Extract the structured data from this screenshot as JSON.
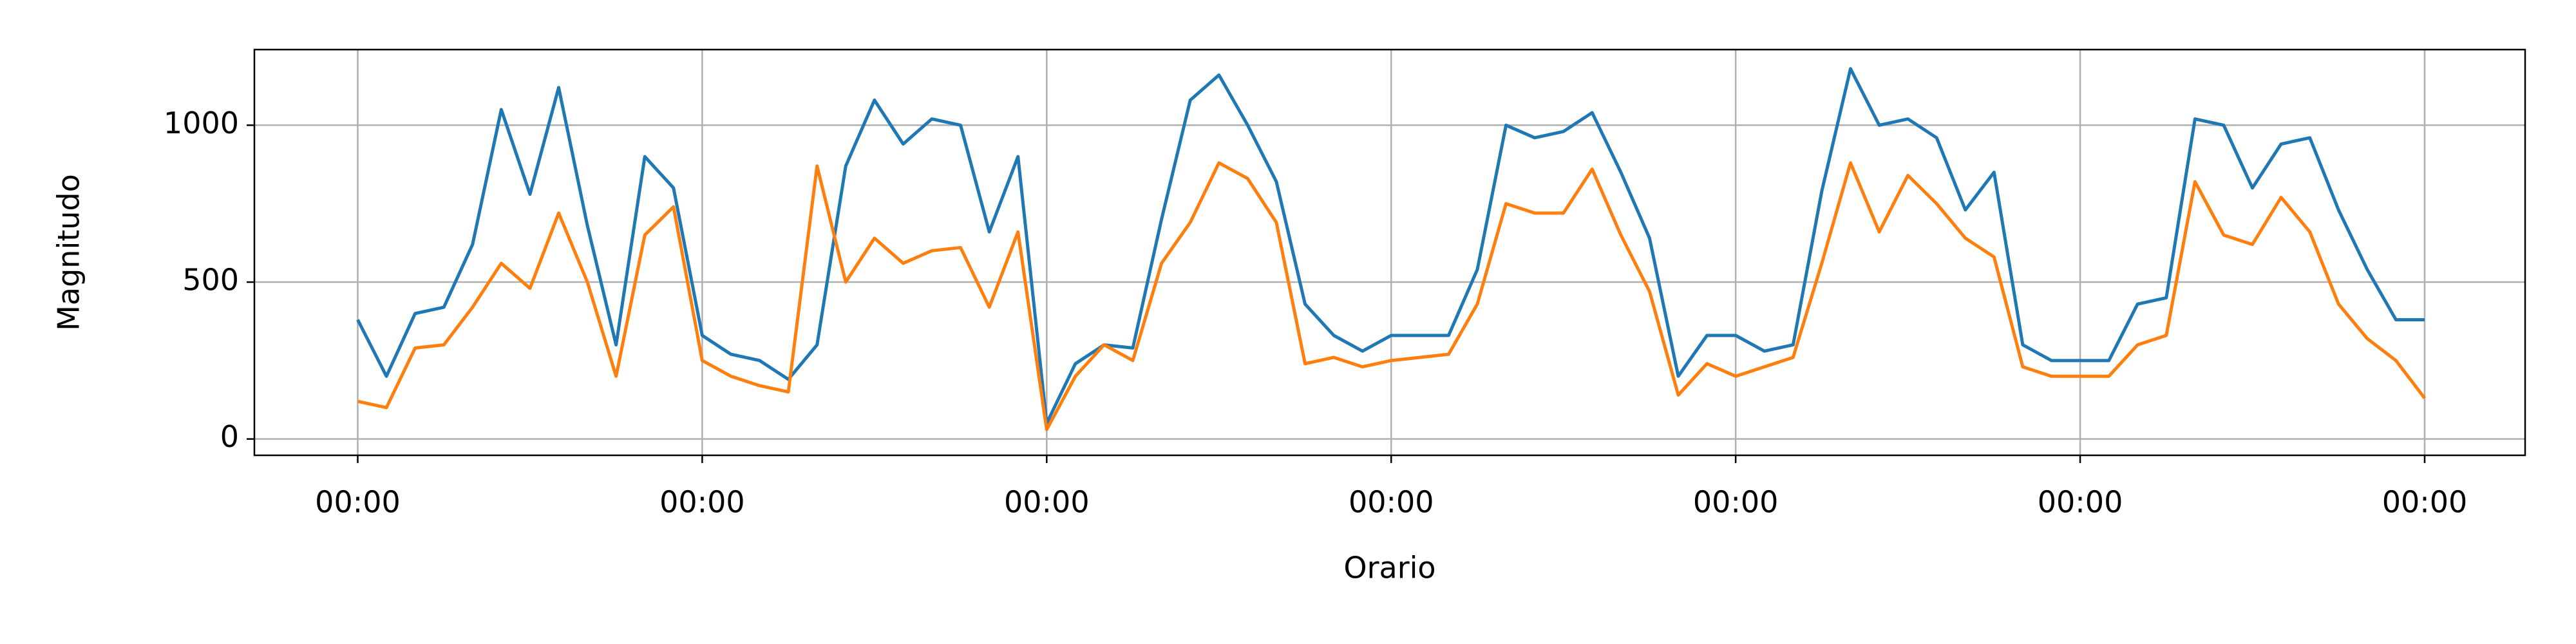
{
  "chart_data": {
    "type": "line",
    "xlabel": "Orario",
    "ylabel": "Magnitudo",
    "x": [
      0,
      2,
      4,
      6,
      8,
      10,
      12,
      14,
      16,
      18,
      20,
      22,
      24,
      26,
      28,
      30,
      32,
      34,
      36,
      38,
      40,
      42,
      44,
      46,
      48,
      50,
      52,
      54,
      56,
      58,
      60,
      62,
      64,
      66,
      68,
      70,
      72,
      74,
      76,
      78,
      80,
      82,
      84,
      86,
      88,
      90,
      92,
      94,
      96,
      98,
      100,
      102,
      104,
      106,
      108,
      110,
      112,
      114,
      116,
      118,
      120,
      122,
      124,
      126,
      128,
      130,
      132,
      134,
      136,
      138,
      140,
      142,
      144
    ],
    "series": [
      {
        "color": "#1f77b4",
        "values": [
          380,
          200,
          400,
          420,
          620,
          1050,
          780,
          1120,
          680,
          300,
          900,
          800,
          330,
          270,
          250,
          190,
          300,
          870,
          1080,
          940,
          1020,
          1000,
          660,
          900,
          50,
          240,
          300,
          290,
          700,
          1080,
          1160,
          1000,
          820,
          430,
          330,
          280,
          330,
          330,
          330,
          540,
          1000,
          960,
          980,
          1040,
          850,
          640,
          200,
          330,
          330,
          280,
          300,
          790,
          1180,
          1000,
          1020,
          960,
          730,
          850,
          300,
          250,
          250,
          250,
          430,
          450,
          1020,
          1000,
          800,
          940,
          960,
          730,
          540,
          380,
          380
        ]
      },
      {
        "color": "#ff7f0e",
        "values": [
          120,
          100,
          290,
          300,
          420,
          560,
          480,
          720,
          500,
          200,
          650,
          740,
          250,
          200,
          170,
          150,
          870,
          500,
          640,
          560,
          600,
          610,
          420,
          660,
          30,
          200,
          300,
          250,
          560,
          690,
          880,
          830,
          690,
          240,
          260,
          230,
          250,
          260,
          270,
          430,
          750,
          720,
          720,
          860,
          650,
          470,
          140,
          240,
          200,
          230,
          260,
          560,
          880,
          660,
          840,
          750,
          640,
          580,
          230,
          200,
          200,
          200,
          300,
          330,
          820,
          650,
          620,
          770,
          660,
          430,
          320,
          250,
          130
        ]
      }
    ],
    "xlim": [
      -7.2,
      151
    ],
    "xticks": [
      {
        "value": 0,
        "label": "00:00"
      },
      {
        "value": 24,
        "label": "00:00"
      },
      {
        "value": 48,
        "label": "00:00"
      },
      {
        "value": 72,
        "label": "00:00"
      },
      {
        "value": 96,
        "label": "00:00"
      },
      {
        "value": 120,
        "label": "00:00"
      },
      {
        "value": 144,
        "label": "00:00"
      }
    ],
    "ylim": [
      -52,
      1241
    ],
    "yticks": [
      0,
      500,
      1000
    ],
    "grid": true
  }
}
